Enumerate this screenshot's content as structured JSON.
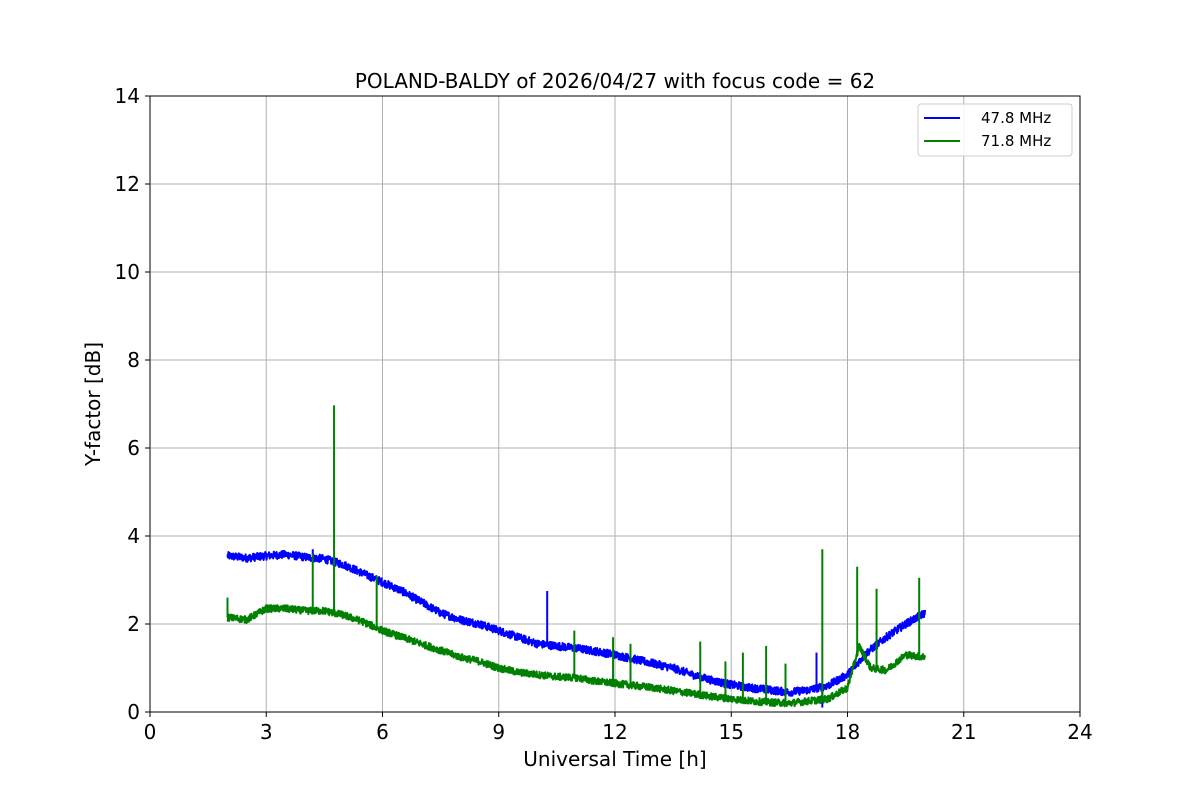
{
  "chart_data": {
    "type": "line",
    "title": "POLAND-BALDY of 2026/04/27 with focus code = 62",
    "xlabel": "Universal Time [h]",
    "ylabel": "Y-factor [dB]",
    "xlim": [
      0,
      24
    ],
    "ylim": [
      0,
      14
    ],
    "xticks": [
      0,
      3,
      6,
      9,
      12,
      15,
      18,
      21,
      24
    ],
    "yticks": [
      0,
      2,
      4,
      6,
      8,
      10,
      12,
      14
    ],
    "grid": true,
    "legend_position": "top-right",
    "series": [
      {
        "name": "47.8 MHz",
        "color": "#0000ff",
        "x": [
          2.0,
          2.5,
          3.0,
          3.5,
          4.0,
          4.5,
          5.0,
          5.5,
          6.0,
          6.5,
          7.0,
          7.5,
          8.0,
          8.5,
          9.0,
          9.5,
          10.0,
          10.5,
          11.0,
          11.5,
          12.0,
          12.5,
          13.0,
          13.5,
          14.0,
          14.5,
          15.0,
          15.5,
          16.0,
          16.5,
          17.0,
          17.5,
          18.0,
          18.5,
          19.0,
          19.5,
          20.0
        ],
        "y": [
          3.55,
          3.5,
          3.55,
          3.58,
          3.52,
          3.48,
          3.35,
          3.15,
          2.95,
          2.75,
          2.5,
          2.25,
          2.1,
          2.0,
          1.85,
          1.7,
          1.55,
          1.5,
          1.45,
          1.38,
          1.3,
          1.2,
          1.1,
          1.0,
          0.85,
          0.72,
          0.62,
          0.55,
          0.5,
          0.45,
          0.5,
          0.6,
          0.85,
          1.35,
          1.7,
          2.0,
          2.25
        ],
        "spikes": [
          {
            "x": 4.2,
            "y": 3.7
          },
          {
            "x": 10.25,
            "y": 2.75
          },
          {
            "x": 17.2,
            "y": 1.35
          },
          {
            "x": 17.35,
            "y": 0.1
          }
        ]
      },
      {
        "name": "71.8 MHz",
        "color": "#008000",
        "x": [
          2.0,
          2.5,
          3.0,
          3.5,
          4.0,
          4.5,
          5.0,
          5.5,
          6.0,
          6.5,
          7.0,
          7.5,
          8.0,
          8.5,
          9.0,
          9.5,
          10.0,
          10.5,
          11.0,
          11.5,
          12.0,
          12.5,
          13.0,
          13.5,
          14.0,
          14.5,
          15.0,
          15.5,
          16.0,
          16.5,
          17.0,
          17.5,
          18.0,
          18.3,
          18.6,
          19.0,
          19.5,
          20.0
        ],
        "y": [
          2.15,
          2.1,
          2.35,
          2.35,
          2.3,
          2.3,
          2.2,
          2.05,
          1.85,
          1.7,
          1.55,
          1.4,
          1.25,
          1.15,
          1.0,
          0.9,
          0.85,
          0.8,
          0.78,
          0.7,
          0.65,
          0.6,
          0.55,
          0.48,
          0.42,
          0.35,
          0.3,
          0.25,
          0.22,
          0.2,
          0.25,
          0.3,
          0.55,
          1.5,
          1.0,
          0.95,
          1.3,
          1.25
        ],
        "spikes": [
          {
            "x": 2.0,
            "y": 2.6
          },
          {
            "x": 4.2,
            "y": 3.6
          },
          {
            "x": 4.75,
            "y": 6.97
          },
          {
            "x": 5.85,
            "y": 3.1
          },
          {
            "x": 10.95,
            "y": 1.85
          },
          {
            "x": 11.95,
            "y": 1.7
          },
          {
            "x": 12.4,
            "y": 1.55
          },
          {
            "x": 14.2,
            "y": 1.6
          },
          {
            "x": 14.85,
            "y": 1.15
          },
          {
            "x": 15.3,
            "y": 1.35
          },
          {
            "x": 15.9,
            "y": 1.5
          },
          {
            "x": 16.4,
            "y": 1.1
          },
          {
            "x": 17.35,
            "y": 3.7
          },
          {
            "x": 18.25,
            "y": 3.3
          },
          {
            "x": 18.75,
            "y": 2.8
          },
          {
            "x": 19.85,
            "y": 3.05
          }
        ]
      }
    ]
  }
}
